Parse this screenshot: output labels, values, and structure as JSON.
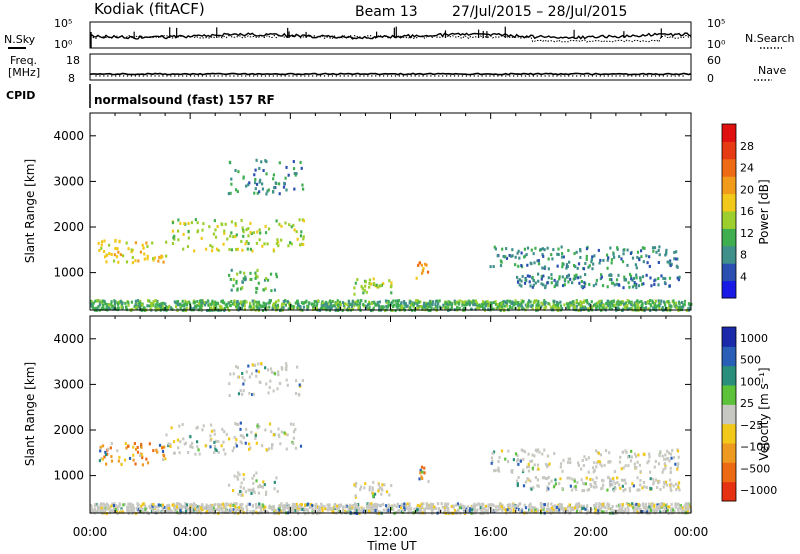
{
  "header": {
    "station": "Kodiak (fitACF)",
    "beam": "Beam 13",
    "dates": "27/Jul/2015 – 28/Jul/2015"
  },
  "top_panels": {
    "nsky_label": "N.Sky",
    "nsearch_label": "N.Search",
    "noise_ticks_left": [
      "10^5",
      "10^0"
    ],
    "noise_ticks_right": [
      "10^5",
      "10^0"
    ],
    "freq_label_1": "Freq.",
    "freq_label_2": "[MHz]",
    "freq_ticks": [
      "18",
      "8"
    ],
    "nave_label": "Nave",
    "nave_ticks": [
      "60",
      "0"
    ],
    "cpid_label": "CPID",
    "cpid_text": "normalsound (fast) 157 RF"
  },
  "chart_data": [
    {
      "type": "heatmap",
      "quantity": "power",
      "ylabel": "Slant Range [km]",
      "ylim": [
        180,
        4500
      ],
      "yticks": [
        1000,
        2000,
        3000,
        4000
      ],
      "xlim": [
        0,
        24
      ],
      "colorbar": {
        "label": "Power [dB]",
        "ticks": [
          "4",
          "8",
          "12",
          "16",
          "20",
          "24",
          "28"
        ],
        "colors": [
          "#1a1ae6",
          "#2a4fb0",
          "#3f8f8a",
          "#3fae4f",
          "#9ccf2e",
          "#f2c81a",
          "#f29a1a",
          "#ee6a14",
          "#e63a12",
          "#e01010"
        ]
      },
      "scatter_regions": [
        {
          "t": [
            0.0,
            24.0
          ],
          "r": [
            200,
            420
          ],
          "level": 3,
          "note": "ground/near-range scatter"
        },
        {
          "t": [
            0.3,
            3.0
          ],
          "r": [
            1250,
            1750
          ],
          "level": 5
        },
        {
          "t": [
            3.0,
            8.5
          ],
          "r": [
            1500,
            2200
          ],
          "level": 4
        },
        {
          "t": [
            5.5,
            8.5
          ],
          "r": [
            2750,
            3500
          ],
          "level": 2
        },
        {
          "t": [
            5.5,
            7.5
          ],
          "r": [
            600,
            1100
          ],
          "level": 3
        },
        {
          "t": [
            10.5,
            12.0
          ],
          "r": [
            550,
            900
          ],
          "level": 4
        },
        {
          "t": [
            13.0,
            13.5
          ],
          "r": [
            900,
            1250
          ],
          "level": 6
        },
        {
          "t": [
            15.9,
            23.5
          ],
          "r": [
            1100,
            1600
          ],
          "level": 2
        },
        {
          "t": [
            17.0,
            23.5
          ],
          "r": [
            700,
            1000
          ],
          "level": 2
        }
      ]
    },
    {
      "type": "heatmap",
      "quantity": "velocity",
      "ylabel": "Slant Range [km]",
      "ylim": [
        180,
        4500
      ],
      "yticks": [
        1000,
        2000,
        3000,
        4000
      ],
      "xlabel": "Time UT",
      "xlim": [
        0,
        24
      ],
      "xtick_labels": [
        "00:00",
        "04:00",
        "08:00",
        "12:00",
        "16:00",
        "20:00",
        "00:00"
      ],
      "colorbar": {
        "label": "Velocity [m s⁻¹]",
        "ticks": [
          "1000",
          "500",
          "100",
          "25",
          "−25",
          "−100",
          "−500",
          "−1000"
        ],
        "colors": [
          "#1a2aa8",
          "#2a5fb8",
          "#2a8f7a",
          "#5cc23a",
          "#c8c8c2",
          "#f2c81a",
          "#ee9a20",
          "#ec6a14",
          "#e63212"
        ]
      }
    }
  ]
}
